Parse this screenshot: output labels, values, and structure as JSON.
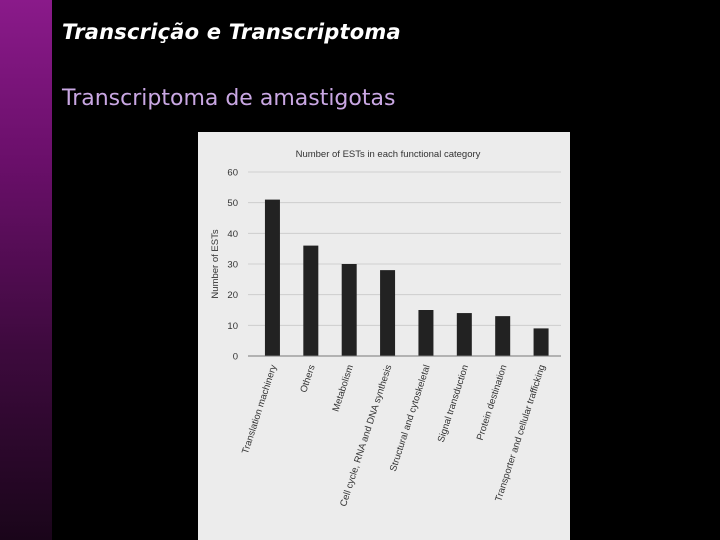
{
  "slide": {
    "title": "Transcrição e Transcriptoma",
    "subtitle": "Transcriptoma de amastigotas"
  },
  "colors": {
    "background": "#000000",
    "accent_bar_top": "#8a1a8a",
    "subtitle": "#c9a7e3",
    "chart_panel": "#ececec",
    "bar": "#222222"
  },
  "chart_data": {
    "type": "bar",
    "title": "Number of ESTs in each functional category",
    "xlabel": "",
    "ylabel": "Number of ESTs",
    "ylim": [
      0,
      60
    ],
    "yticks": [
      0,
      10,
      20,
      30,
      40,
      50,
      60
    ],
    "grid": true,
    "categories": [
      "Translation machinery",
      "Others",
      "Metabolism",
      "Cell cycle, RNA and DNA synthesis",
      "Structural and cytoskeletal",
      "Signal transduction",
      "Protein destination",
      "Transporter and cellular trafficking"
    ],
    "values": [
      51,
      36,
      30,
      28,
      15,
      14,
      13,
      9
    ]
  }
}
